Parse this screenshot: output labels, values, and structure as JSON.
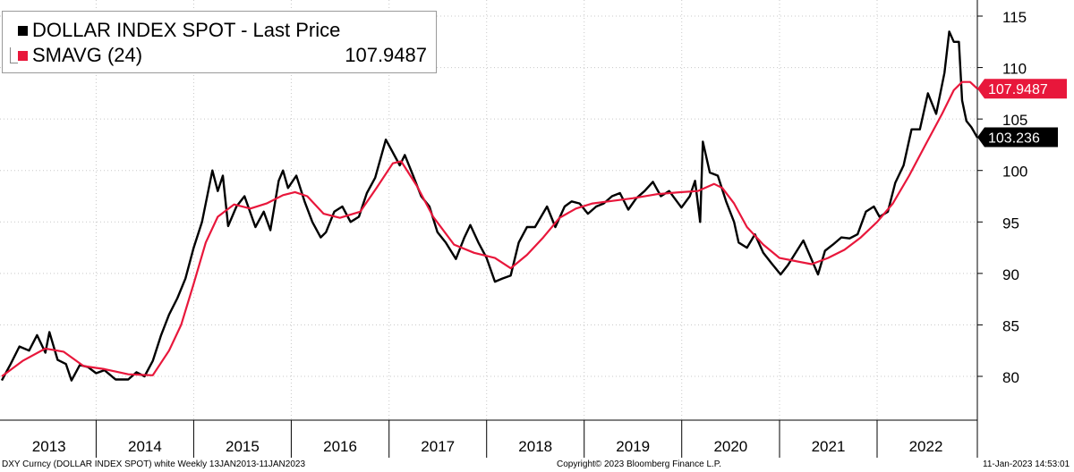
{
  "legend": {
    "series1": {
      "name": "DOLLAR INDEX SPOT - Last Price",
      "color": "#000000"
    },
    "series2": {
      "name": "SMAVG (24)",
      "value": "107.9487",
      "color": "#e8173b"
    }
  },
  "footer": {
    "left": "DXY Curncy (DOLLAR INDEX SPOT) white  Weekly 13JAN2013-11JAN2023",
    "center": "Copyright© 2023 Bloomberg Finance L.P.",
    "right": "11-Jan-2023 14:53:01"
  },
  "chart_data": {
    "type": "line",
    "x_range": [
      "2013-01-13",
      "2023-01-11"
    ],
    "ylim": [
      77,
      115
    ],
    "y_ticks": [
      80,
      85,
      90,
      95,
      100,
      105,
      110,
      115
    ],
    "x_year_labels": [
      "2013",
      "2014",
      "2015",
      "2016",
      "2017",
      "2018",
      "2019",
      "2020",
      "2021",
      "2022"
    ],
    "grid": true,
    "legend_position": "top-left",
    "last_value_labels": [
      {
        "label": "107.9487",
        "y": 107.9487,
        "color": "#e8173b",
        "text_color": "#ffffff"
      },
      {
        "label": "103.236",
        "y": 103.236,
        "color": "#000000",
        "text_color": "#ffffff"
      }
    ],
    "series": [
      {
        "name": "DOLLAR INDEX SPOT - Last Price",
        "color": "#000000",
        "points": [
          [
            "2013-01-13",
            79.6
          ],
          [
            "2013-02-15",
            81.2
          ],
          [
            "2013-03-20",
            82.9
          ],
          [
            "2013-04-25",
            82.5
          ],
          [
            "2013-05-25",
            84.0
          ],
          [
            "2013-06-25",
            82.3
          ],
          [
            "2013-07-10",
            84.3
          ],
          [
            "2013-08-10",
            81.6
          ],
          [
            "2013-09-10",
            81.2
          ],
          [
            "2013-10-01",
            79.6
          ],
          [
            "2013-11-01",
            81.1
          ],
          [
            "2013-12-01",
            80.9
          ],
          [
            "2014-01-01",
            80.3
          ],
          [
            "2014-02-01",
            80.6
          ],
          [
            "2014-03-15",
            79.7
          ],
          [
            "2014-05-01",
            79.7
          ],
          [
            "2014-06-01",
            80.4
          ],
          [
            "2014-07-01",
            80.0
          ],
          [
            "2014-08-01",
            81.5
          ],
          [
            "2014-09-01",
            84.0
          ],
          [
            "2014-10-01",
            86.0
          ],
          [
            "2014-11-01",
            87.6
          ],
          [
            "2014-12-01",
            89.5
          ],
          [
            "2015-01-01",
            92.5
          ],
          [
            "2015-02-01",
            95.0
          ],
          [
            "2015-03-12",
            100.0
          ],
          [
            "2015-04-01",
            98.0
          ],
          [
            "2015-04-20",
            99.5
          ],
          [
            "2015-05-10",
            94.6
          ],
          [
            "2015-06-10",
            96.5
          ],
          [
            "2015-07-10",
            97.5
          ],
          [
            "2015-08-20",
            94.5
          ],
          [
            "2015-09-20",
            96.0
          ],
          [
            "2015-10-15",
            94.2
          ],
          [
            "2015-11-15",
            99.0
          ],
          [
            "2015-12-01",
            100.0
          ],
          [
            "2015-12-20",
            98.3
          ],
          [
            "2016-01-20",
            99.5
          ],
          [
            "2016-02-20",
            97.0
          ],
          [
            "2016-03-20",
            95.0
          ],
          [
            "2016-04-20",
            93.5
          ],
          [
            "2016-05-10",
            94.0
          ],
          [
            "2016-06-10",
            96.0
          ],
          [
            "2016-07-10",
            96.5
          ],
          [
            "2016-08-10",
            95.0
          ],
          [
            "2016-09-10",
            95.5
          ],
          [
            "2016-10-10",
            97.8
          ],
          [
            "2016-11-10",
            99.3
          ],
          [
            "2016-12-20",
            103.0
          ],
          [
            "2017-01-10",
            102.0
          ],
          [
            "2017-02-10",
            100.5
          ],
          [
            "2017-03-01",
            101.5
          ],
          [
            "2017-04-01",
            99.5
          ],
          [
            "2017-05-01",
            97.5
          ],
          [
            "2017-06-01",
            96.5
          ],
          [
            "2017-07-01",
            94.0
          ],
          [
            "2017-08-01",
            93.0
          ],
          [
            "2017-09-08",
            91.4
          ],
          [
            "2017-10-10",
            93.5
          ],
          [
            "2017-11-01",
            94.7
          ],
          [
            "2017-12-01",
            93.0
          ],
          [
            "2018-01-01",
            91.5
          ],
          [
            "2018-02-01",
            89.2
          ],
          [
            "2018-03-01",
            89.5
          ],
          [
            "2018-04-01",
            89.8
          ],
          [
            "2018-05-01",
            93.0
          ],
          [
            "2018-06-01",
            94.5
          ],
          [
            "2018-07-01",
            94.5
          ],
          [
            "2018-08-15",
            96.5
          ],
          [
            "2018-09-15",
            94.5
          ],
          [
            "2018-10-20",
            96.5
          ],
          [
            "2018-11-15",
            97.0
          ],
          [
            "2018-12-15",
            96.8
          ],
          [
            "2019-01-15",
            95.8
          ],
          [
            "2019-02-15",
            96.5
          ],
          [
            "2019-03-15",
            96.8
          ],
          [
            "2019-04-15",
            97.5
          ],
          [
            "2019-05-15",
            97.8
          ],
          [
            "2019-06-15",
            96.2
          ],
          [
            "2019-07-15",
            97.3
          ],
          [
            "2019-08-15",
            98.0
          ],
          [
            "2019-09-15",
            98.9
          ],
          [
            "2019-10-15",
            97.5
          ],
          [
            "2019-11-15",
            98.0
          ],
          [
            "2019-12-31",
            96.4
          ],
          [
            "2020-01-31",
            97.5
          ],
          [
            "2020-02-20",
            99.0
          ],
          [
            "2020-03-10",
            95.0
          ],
          [
            "2020-03-20",
            102.8
          ],
          [
            "2020-04-15",
            99.8
          ],
          [
            "2020-05-15",
            99.5
          ],
          [
            "2020-06-15",
            97.0
          ],
          [
            "2020-07-15",
            95.0
          ],
          [
            "2020-08-01",
            93.0
          ],
          [
            "2020-09-01",
            92.5
          ],
          [
            "2020-10-01",
            93.8
          ],
          [
            "2020-11-01",
            92.0
          ],
          [
            "2020-12-01",
            91.0
          ],
          [
            "2021-01-05",
            89.9
          ],
          [
            "2021-02-01",
            90.8
          ],
          [
            "2021-03-31",
            93.2
          ],
          [
            "2021-05-25",
            89.9
          ],
          [
            "2021-06-20",
            92.2
          ],
          [
            "2021-07-20",
            92.8
          ],
          [
            "2021-08-20",
            93.5
          ],
          [
            "2021-09-20",
            93.4
          ],
          [
            "2021-10-20",
            93.8
          ],
          [
            "2021-11-20",
            96.0
          ],
          [
            "2021-12-20",
            96.5
          ],
          [
            "2022-01-10",
            95.5
          ],
          [
            "2022-02-10",
            96.0
          ],
          [
            "2022-03-10",
            98.8
          ],
          [
            "2022-04-10",
            100.5
          ],
          [
            "2022-05-10",
            104.0
          ],
          [
            "2022-06-10",
            104.0
          ],
          [
            "2022-07-10",
            107.5
          ],
          [
            "2022-08-10",
            105.5
          ],
          [
            "2022-09-10",
            109.5
          ],
          [
            "2022-09-28",
            113.5
          ],
          [
            "2022-10-15",
            112.5
          ],
          [
            "2022-11-03",
            112.5
          ],
          [
            "2022-11-15",
            106.8
          ],
          [
            "2022-12-01",
            104.8
          ],
          [
            "2022-12-20",
            104.2
          ],
          [
            "2023-01-11",
            103.2
          ]
        ]
      },
      {
        "name": "SMAVG (24)",
        "color": "#e8173b",
        "points": [
          [
            "2013-01-13",
            80.0
          ],
          [
            "2013-04-01",
            81.5
          ],
          [
            "2013-06-25",
            82.7
          ],
          [
            "2013-09-01",
            82.4
          ],
          [
            "2013-11-15",
            81.0
          ],
          [
            "2014-02-01",
            80.7
          ],
          [
            "2014-05-01",
            80.2
          ],
          [
            "2014-08-01",
            80.1
          ],
          [
            "2014-10-01",
            82.5
          ],
          [
            "2014-11-15",
            85.0
          ],
          [
            "2015-01-01",
            89.0
          ],
          [
            "2015-02-15",
            93.0
          ],
          [
            "2015-04-01",
            95.5
          ],
          [
            "2015-06-01",
            96.7
          ],
          [
            "2015-08-01",
            96.3
          ],
          [
            "2015-10-01",
            96.8
          ],
          [
            "2015-12-01",
            97.6
          ],
          [
            "2016-01-15",
            97.9
          ],
          [
            "2016-03-01",
            97.5
          ],
          [
            "2016-05-01",
            95.8
          ],
          [
            "2016-07-01",
            95.4
          ],
          [
            "2016-09-15",
            96.0
          ],
          [
            "2016-11-15",
            98.3
          ],
          [
            "2017-01-15",
            100.7
          ],
          [
            "2017-02-15",
            100.9
          ],
          [
            "2017-04-15",
            98.5
          ],
          [
            "2017-06-15",
            95.5
          ],
          [
            "2017-09-01",
            92.8
          ],
          [
            "2017-11-15",
            92.0
          ],
          [
            "2018-02-01",
            91.5
          ],
          [
            "2018-04-01",
            90.5
          ],
          [
            "2018-06-01",
            91.8
          ],
          [
            "2018-08-01",
            93.5
          ],
          [
            "2018-10-01",
            95.4
          ],
          [
            "2018-12-01",
            96.3
          ],
          [
            "2019-02-01",
            96.8
          ],
          [
            "2019-04-01",
            97.0
          ],
          [
            "2019-07-01",
            97.3
          ],
          [
            "2019-10-01",
            97.7
          ],
          [
            "2020-01-01",
            97.9
          ],
          [
            "2020-03-01",
            98.0
          ],
          [
            "2020-05-01",
            98.7
          ],
          [
            "2020-06-01",
            98.3
          ],
          [
            "2020-07-15",
            96.8
          ],
          [
            "2020-09-01",
            94.5
          ],
          [
            "2020-11-01",
            92.8
          ],
          [
            "2021-01-01",
            91.5
          ],
          [
            "2021-03-01",
            91.2
          ],
          [
            "2021-05-01",
            90.9
          ],
          [
            "2021-07-01",
            91.5
          ],
          [
            "2021-09-01",
            92.3
          ],
          [
            "2021-11-01",
            93.5
          ],
          [
            "2022-01-01",
            95.0
          ],
          [
            "2022-03-01",
            96.8
          ],
          [
            "2022-05-01",
            99.5
          ],
          [
            "2022-07-01",
            102.5
          ],
          [
            "2022-09-01",
            105.5
          ],
          [
            "2022-10-15",
            107.8
          ],
          [
            "2022-11-15",
            108.6
          ],
          [
            "2022-12-15",
            108.6
          ],
          [
            "2023-01-11",
            107.9487
          ]
        ]
      }
    ]
  }
}
